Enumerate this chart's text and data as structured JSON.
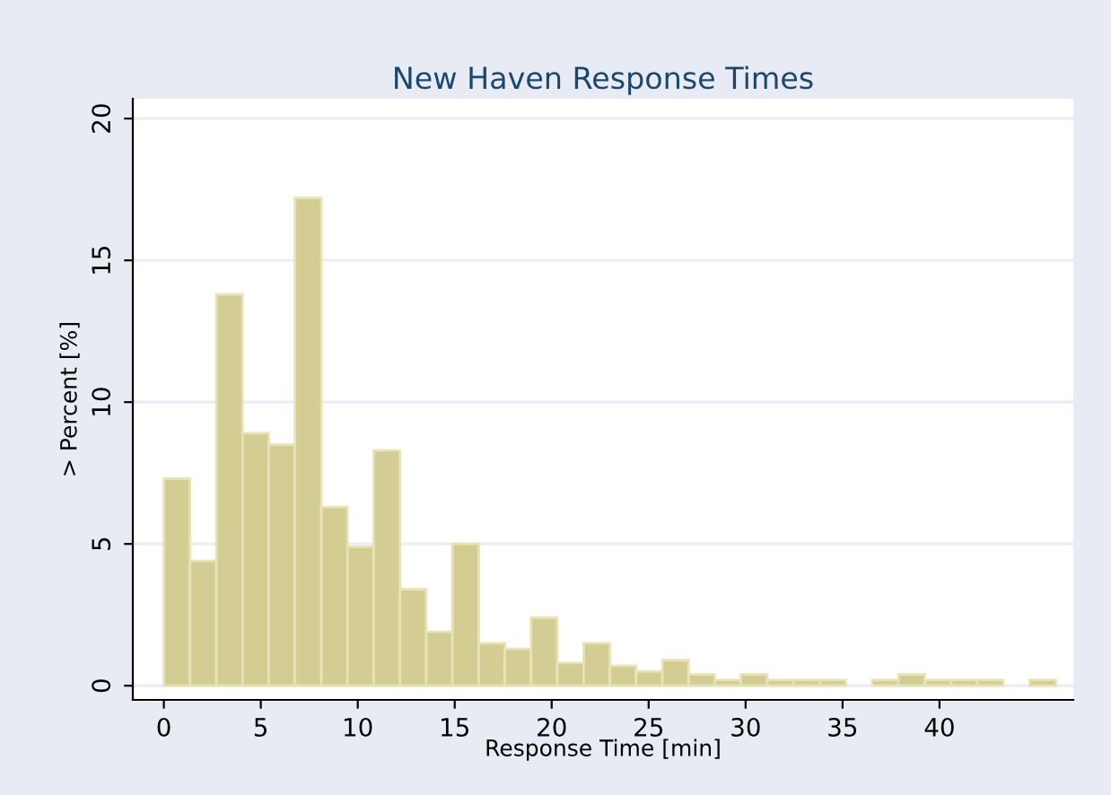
{
  "chart_data": {
    "type": "histogram",
    "title": "New Haven Response Times",
    "xlabel": "Response Time [min]",
    "ylabel": "> Percent [%]",
    "bins": [
      0,
      1.35,
      2.71,
      4.06,
      5.41,
      6.76,
      8.12,
      9.47,
      10.82,
      12.18,
      13.53,
      14.88,
      16.24,
      17.59,
      18.94,
      20.29,
      21.65,
      23,
      24.35,
      25.71,
      27.06,
      28.41,
      29.76,
      31.12,
      32.47,
      33.82,
      35.18,
      36.53,
      37.88,
      39.24,
      40.59,
      41.94,
      43.29,
      44.65,
      46
    ],
    "values": [
      7.3,
      4.4,
      13.8,
      8.9,
      8.5,
      17.2,
      6.3,
      4.9,
      8.3,
      3.4,
      1.9,
      5.0,
      1.5,
      1.3,
      2.4,
      0.8,
      1.5,
      0.7,
      0.5,
      0.9,
      0.4,
      0.2,
      0.4,
      0.2,
      0.2,
      0.2,
      0,
      0.2,
      0.4,
      0.2,
      0.2,
      0.2,
      0,
      0.2
    ],
    "color": "#d4cd93",
    "xlim": [
      -1.6,
      46.9
    ],
    "xticks": [
      0,
      5,
      10,
      15,
      20,
      25,
      30,
      35,
      40
    ],
    "ylim": [
      -0.5,
      20.7
    ],
    "yticks": [
      0,
      5,
      10,
      15,
      20
    ],
    "grid": "y"
  }
}
